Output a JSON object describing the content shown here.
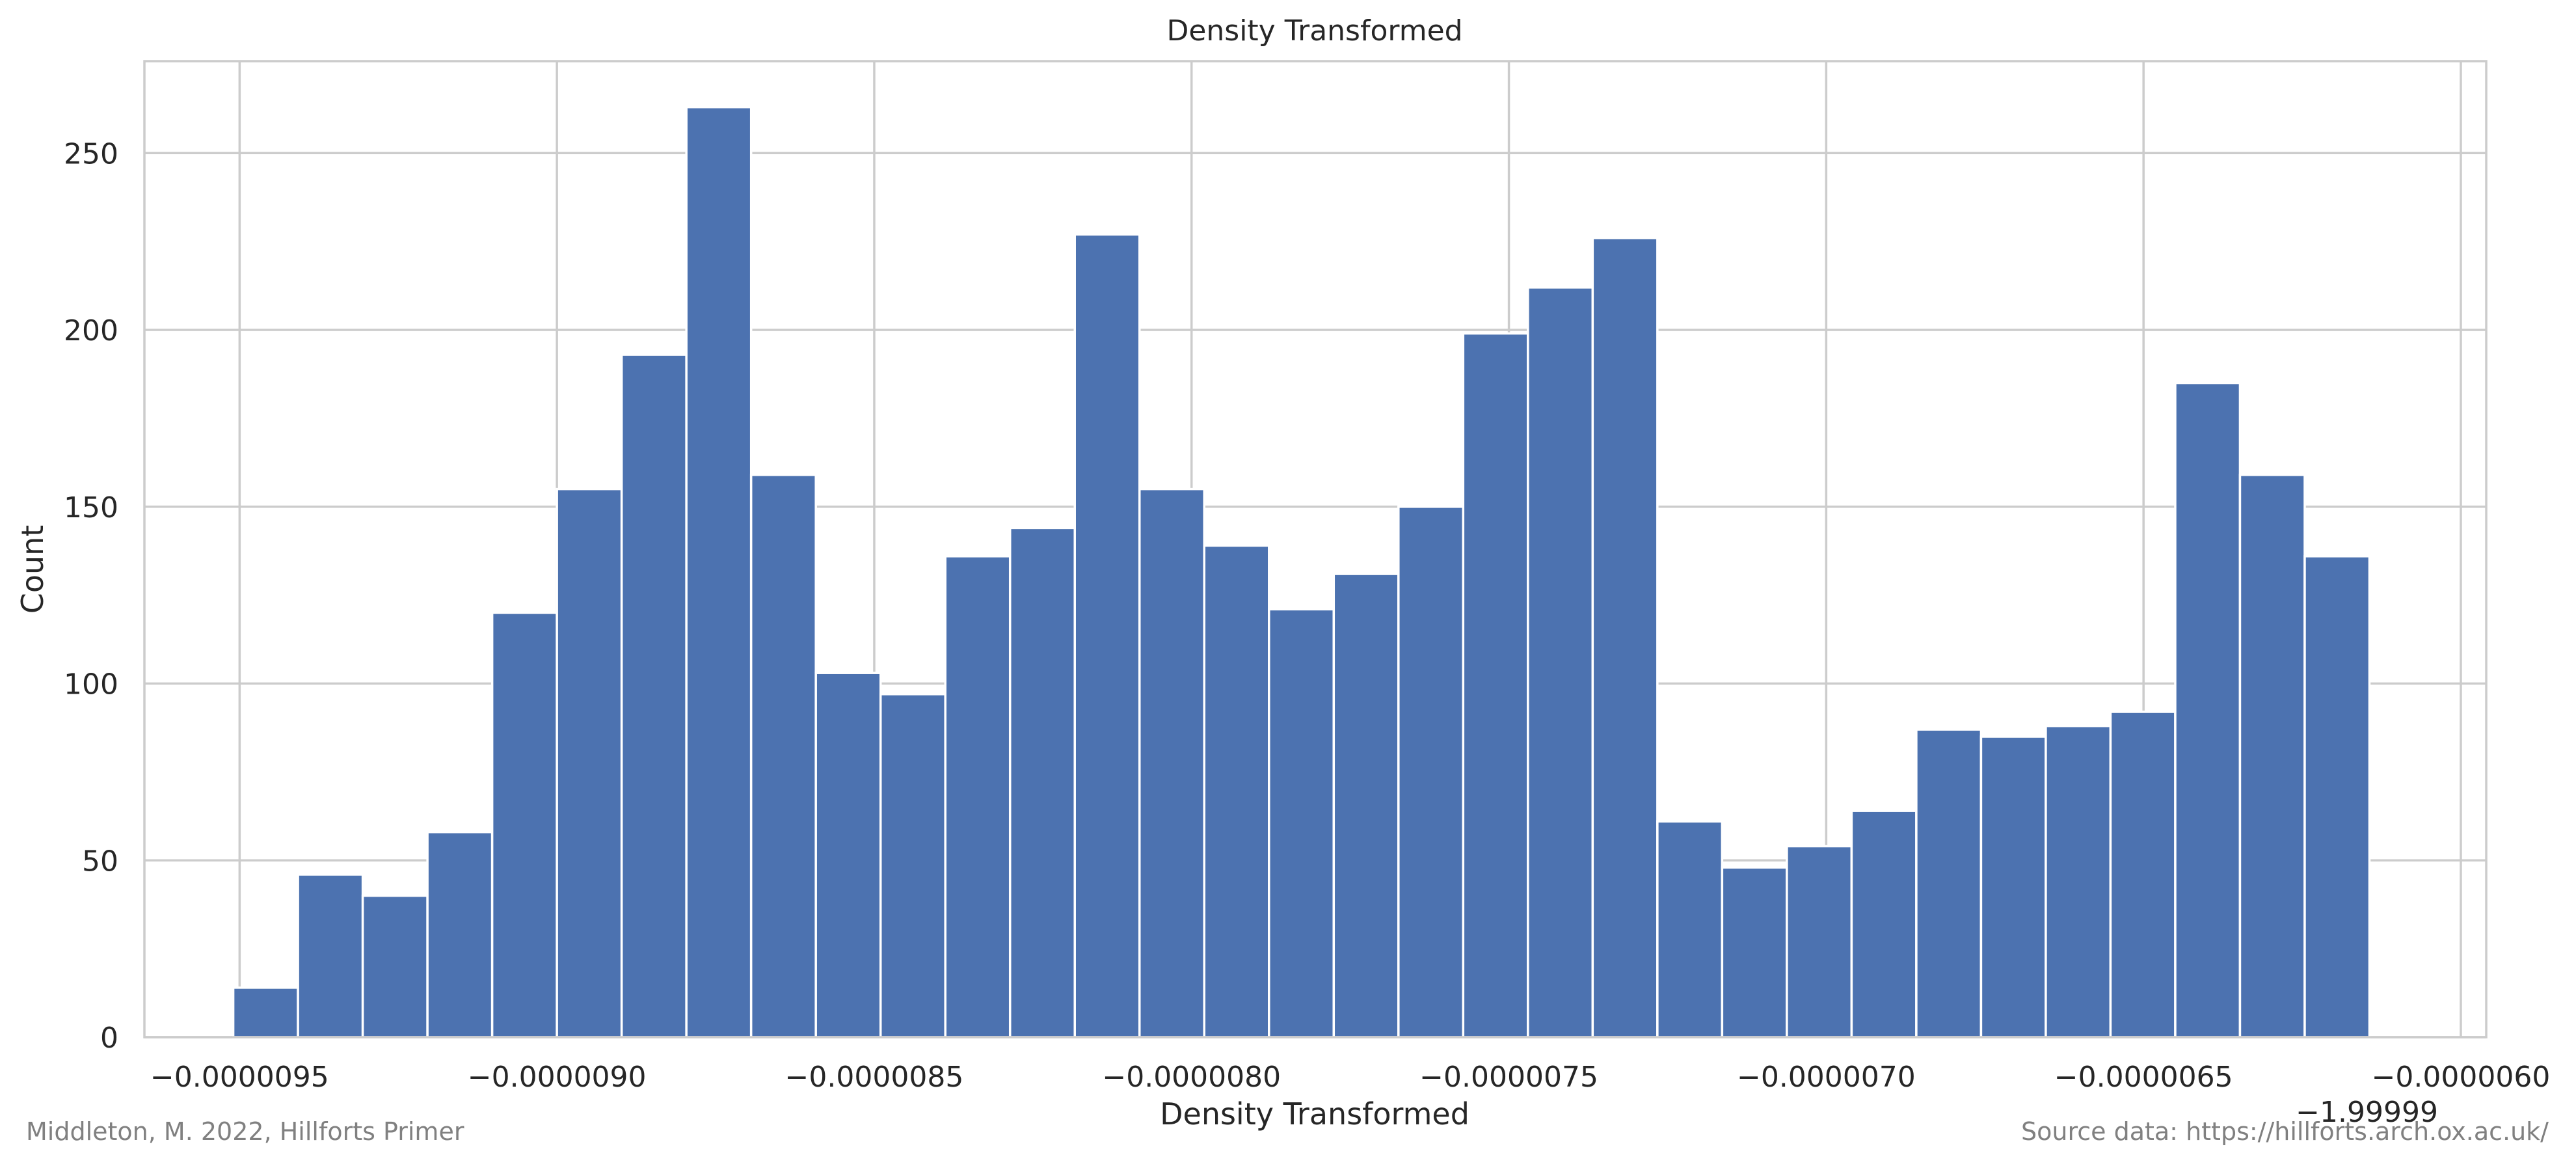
{
  "chart_data": {
    "type": "bar",
    "title": "Density Transformed",
    "xlabel": "Density Transformed",
    "ylabel": "Count",
    "offset_label": "−1.99999",
    "x_ticks": [
      -9.5e-06,
      -9e-06,
      -8.5e-06,
      -8e-06,
      -7.5e-06,
      -7e-06,
      -6.5e-06,
      -6e-06
    ],
    "x_tick_labels": [
      "−0.0000095",
      "−0.0000090",
      "−0.0000085",
      "−0.0000080",
      "−0.0000075",
      "−0.0000070",
      "−0.0000065",
      "−0.0000060"
    ],
    "y_ticks": [
      0,
      50,
      100,
      150,
      200,
      250
    ],
    "y_tick_labels": [
      "0",
      "50",
      "100",
      "150",
      "200",
      "250"
    ],
    "xlim": [
      -9.65e-06,
      -5.96e-06
    ],
    "ylim": [
      0,
      276
    ],
    "bin_start": -9.51e-06,
    "bin_width": 1.02e-07,
    "values": [
      14,
      46,
      40,
      58,
      120,
      155,
      193,
      263,
      159,
      103,
      97,
      136,
      144,
      227,
      155,
      139,
      121,
      131,
      150,
      199,
      212,
      226,
      61,
      48,
      54,
      64,
      87,
      85,
      88,
      92,
      185,
      159,
      136
    ],
    "bar_color": "#4c72b0",
    "grid": true
  },
  "footer": {
    "left": "Middleton, M. 2022, Hillforts Primer",
    "right": "Source data: https://hillforts.arch.ox.ac.uk/"
  }
}
